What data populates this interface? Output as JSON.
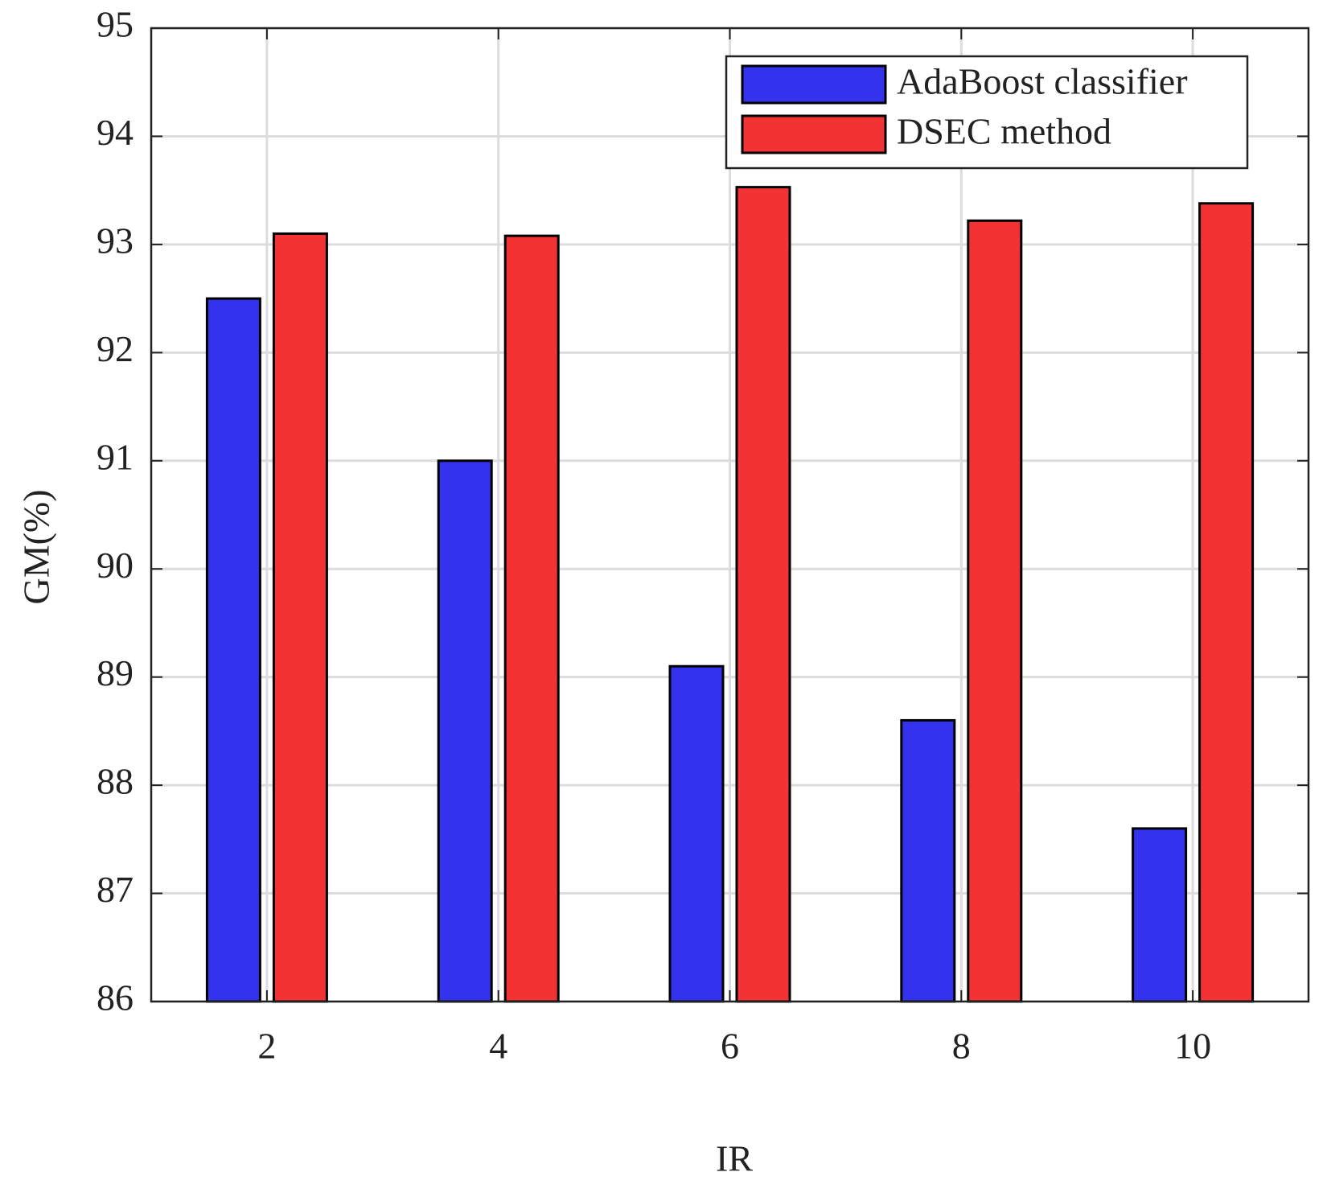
{
  "chart_data": {
    "type": "bar",
    "x_label": "IR",
    "y_label": "GM(%)",
    "categories": [
      "2",
      "4",
      "6",
      "8",
      "10"
    ],
    "series": [
      {
        "name": "AdaBoost classifier",
        "color": "#3333ee",
        "values": [
          92.5,
          91.0,
          89.1,
          88.6,
          87.6
        ]
      },
      {
        "name": "DSEC method",
        "color": "#f33333",
        "values": [
          93.1,
          93.08,
          93.53,
          93.22,
          93.38
        ]
      }
    ],
    "ylim": [
      86,
      95
    ],
    "yticks": [
      86,
      87,
      88,
      89,
      90,
      91,
      92,
      93,
      94,
      95
    ],
    "grid": true,
    "legend": "upper right"
  }
}
